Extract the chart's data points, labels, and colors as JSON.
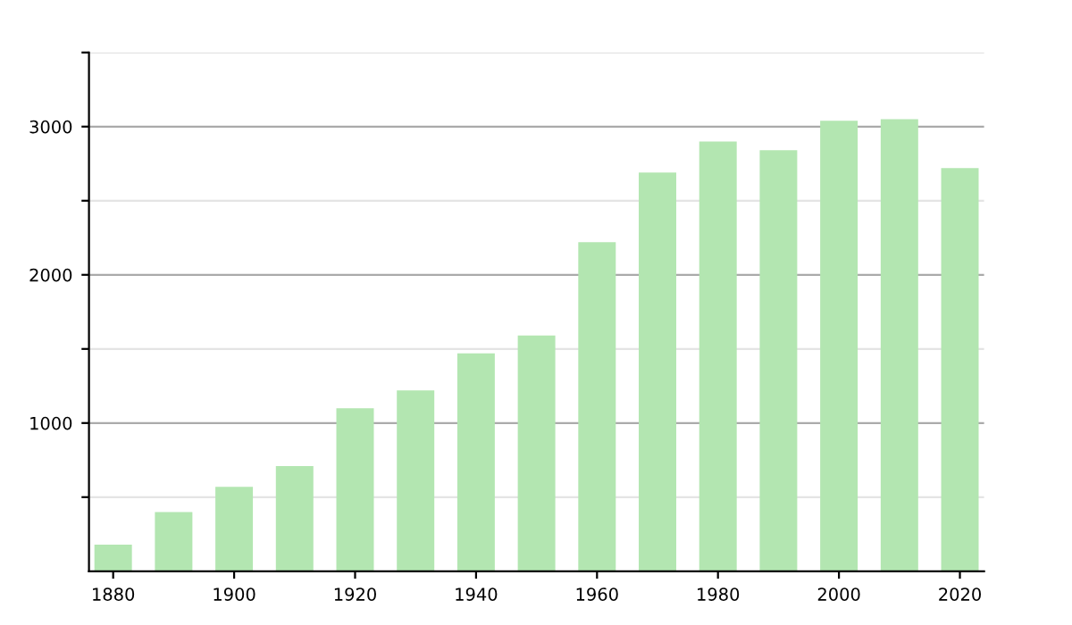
{
  "chart_data": {
    "type": "bar",
    "x": [
      1880,
      1890,
      1900,
      1910,
      1920,
      1930,
      1940,
      1950,
      1960,
      1970,
      1980,
      1990,
      2000,
      2010,
      2020
    ],
    "values": [
      180,
      400,
      570,
      710,
      1100,
      1220,
      1470,
      1590,
      2220,
      2690,
      2900,
      2840,
      3040,
      3050,
      2720
    ],
    "color": "#b3e6b1",
    "xlim": [
      1876,
      2024
    ],
    "xticks": [
      1880,
      1900,
      1920,
      1940,
      1960,
      1980,
      2000,
      2020
    ],
    "ylim": [
      0,
      3500
    ],
    "yticks": [
      {
        "value": 500,
        "label": null
      },
      1000,
      {
        "value": 1500,
        "label": null
      },
      2000,
      {
        "value": 2500,
        "label": null
      },
      3000,
      {
        "value": 3500,
        "label": null
      }
    ],
    "grid": "y"
  }
}
